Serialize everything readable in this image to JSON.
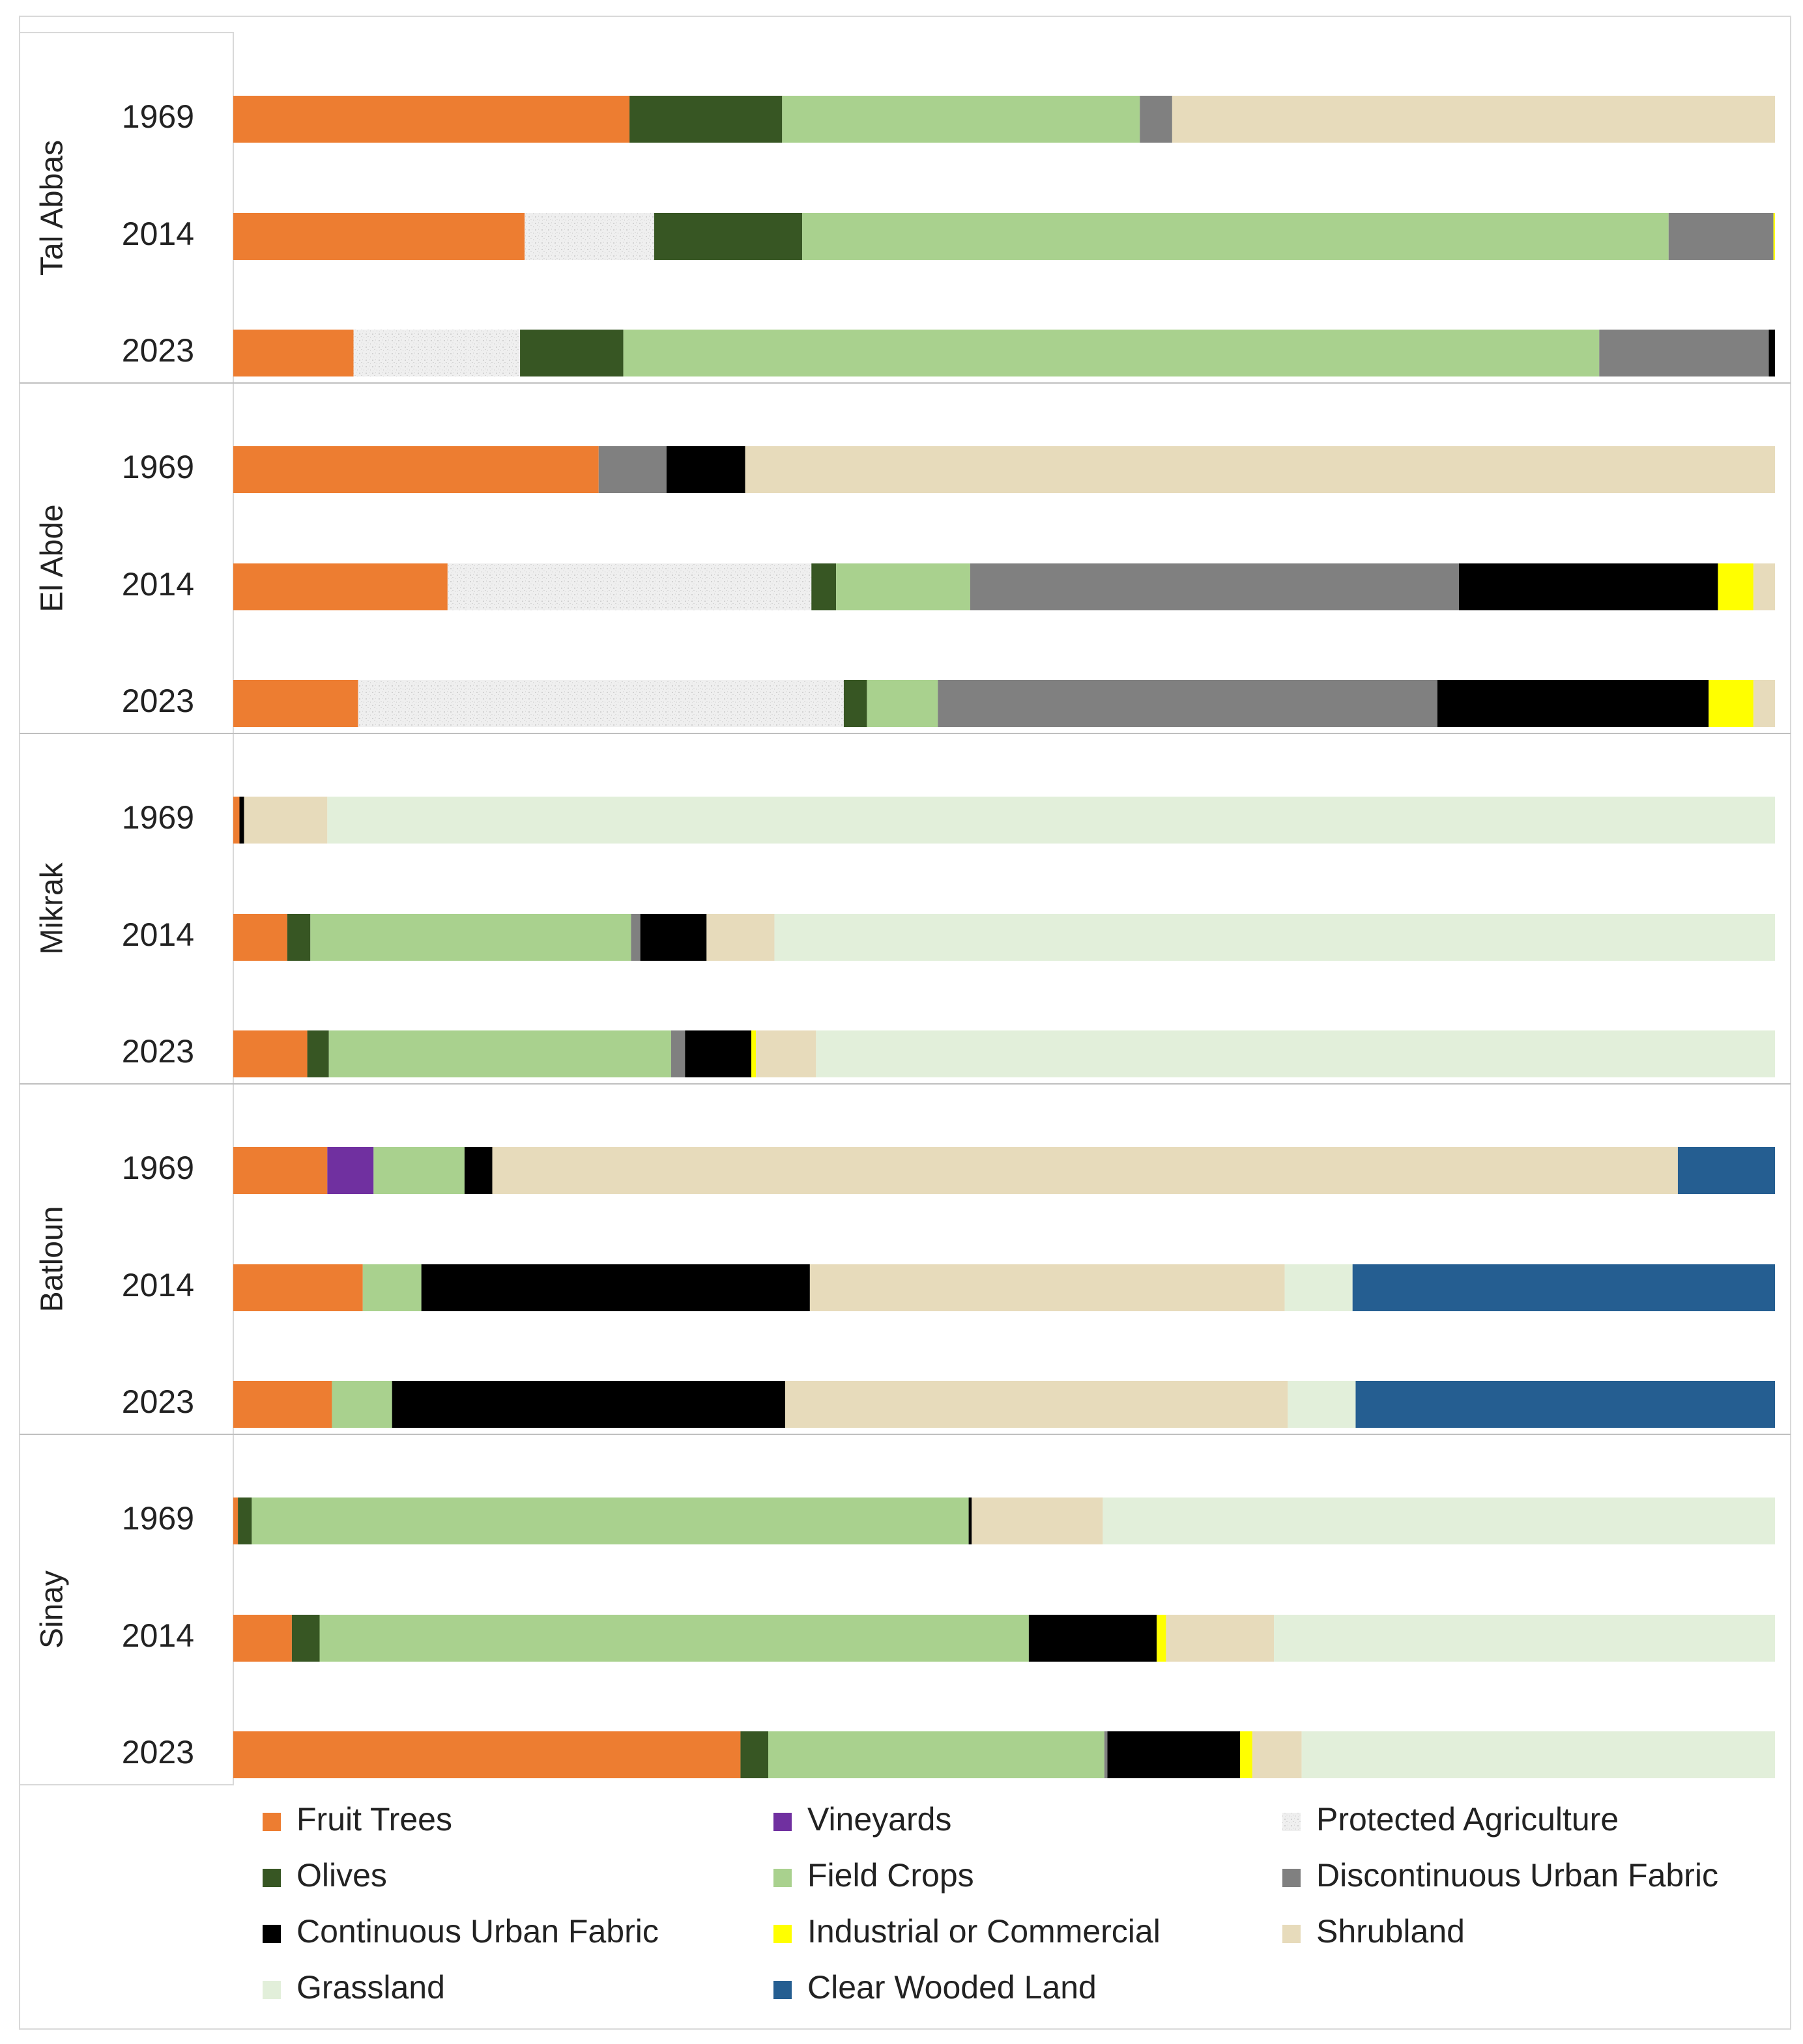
{
  "chart_data": {
    "type": "bar",
    "stacked": true,
    "orientation": "horizontal",
    "normalized": true,
    "xlim": [
      0,
      100
    ],
    "unit": "percent of area (estimated)",
    "legend_position": "bottom",
    "colors": {
      "Fruit Trees": "#ED7D31",
      "Vineyards": "#7030A0",
      "Protected Agriculture": "#EFEFEF",
      "Olives": "#375623",
      "Field Crops": "#A9D18E",
      "Discontinuous Urban Fabric": "#808080",
      "Continuous Urban Fabric": "#000000",
      "Industrial or Commercial": "#FFFF00",
      "Shrubland": "#E7DBBB",
      "Grassland": "#E2EFDA",
      "Clear Wooded Land": "#255E91"
    },
    "legend": [
      "Fruit Trees",
      "Vineyards",
      "Protected Agriculture",
      "Olives",
      "Field Crops",
      "Discontinuous Urban Fabric",
      "Continuous Urban Fabric",
      "Industrial or Commercial",
      "Shrubland",
      "Grassland",
      "Clear Wooded Land"
    ],
    "groups": [
      {
        "name": "Tal Abbas",
        "rows": [
          {
            "year": "1969",
            "segments": [
              {
                "class": "Fruit Trees",
                "value": 25.7
              },
              {
                "class": "Olives",
                "value": 9.9
              },
              {
                "class": "Field Crops",
                "value": 23.2
              },
              {
                "class": "Discontinuous Urban Fabric",
                "value": 2.1
              },
              {
                "class": "Shrubland",
                "value": 39.1
              }
            ]
          },
          {
            "year": "2014",
            "segments": [
              {
                "class": "Fruit Trees",
                "value": 18.9
              },
              {
                "class": "Protected Agriculture",
                "value": 8.4
              },
              {
                "class": "Olives",
                "value": 9.6
              },
              {
                "class": "Field Crops",
                "value": 56.2
              },
              {
                "class": "Discontinuous Urban Fabric",
                "value": 6.8
              },
              {
                "class": "Industrial or Commercial",
                "value": 0.1
              }
            ]
          },
          {
            "year": "2023",
            "segments": [
              {
                "class": "Fruit Trees",
                "value": 7.8
              },
              {
                "class": "Protected Agriculture",
                "value": 10.8
              },
              {
                "class": "Olives",
                "value": 6.7
              },
              {
                "class": "Field Crops",
                "value": 63.3
              },
              {
                "class": "Discontinuous Urban Fabric",
                "value": 11.0
              },
              {
                "class": "Continuous Urban Fabric",
                "value": 0.4
              }
            ]
          }
        ]
      },
      {
        "name": "El Abde",
        "rows": [
          {
            "year": "1969",
            "segments": [
              {
                "class": "Fruit Trees",
                "value": 23.7
              },
              {
                "class": "Discontinuous Urban Fabric",
                "value": 4.4
              },
              {
                "class": "Continuous Urban Fabric",
                "value": 5.1
              },
              {
                "class": "Shrubland",
                "value": 66.8
              }
            ]
          },
          {
            "year": "2014",
            "segments": [
              {
                "class": "Fruit Trees",
                "value": 13.9
              },
              {
                "class": "Protected Agriculture",
                "value": 23.6
              },
              {
                "class": "Olives",
                "value": 1.6
              },
              {
                "class": "Field Crops",
                "value": 8.7
              },
              {
                "class": "Discontinuous Urban Fabric",
                "value": 31.7
              },
              {
                "class": "Continuous Urban Fabric",
                "value": 16.8
              },
              {
                "class": "Industrial or Commercial",
                "value": 2.3
              },
              {
                "class": "Shrubland",
                "value": 1.4
              }
            ]
          },
          {
            "year": "2023",
            "segments": [
              {
                "class": "Fruit Trees",
                "value": 8.1
              },
              {
                "class": "Protected Agriculture",
                "value": 31.5
              },
              {
                "class": "Olives",
                "value": 1.5
              },
              {
                "class": "Field Crops",
                "value": 4.6
              },
              {
                "class": "Discontinuous Urban Fabric",
                "value": 32.4
              },
              {
                "class": "Continuous Urban Fabric",
                "value": 17.6
              },
              {
                "class": "Industrial or Commercial",
                "value": 2.9
              },
              {
                "class": "Shrubland",
                "value": 1.4
              }
            ]
          }
        ]
      },
      {
        "name": "Mikrak",
        "rows": [
          {
            "year": "1969",
            "segments": [
              {
                "class": "Fruit Trees",
                "value": 0.4
              },
              {
                "class": "Continuous Urban Fabric",
                "value": 0.3
              },
              {
                "class": "Shrubland",
                "value": 5.4
              },
              {
                "class": "Grassland",
                "value": 93.9
              }
            ]
          },
          {
            "year": "2014",
            "segments": [
              {
                "class": "Fruit Trees",
                "value": 3.5
              },
              {
                "class": "Olives",
                "value": 1.5
              },
              {
                "class": "Field Crops",
                "value": 20.8
              },
              {
                "class": "Discontinuous Urban Fabric",
                "value": 0.6
              },
              {
                "class": "Continuous Urban Fabric",
                "value": 4.3
              },
              {
                "class": "Shrubland",
                "value": 4.4
              },
              {
                "class": "Grassland",
                "value": 64.9
              }
            ]
          },
          {
            "year": "2023",
            "segments": [
              {
                "class": "Fruit Trees",
                "value": 4.8
              },
              {
                "class": "Olives",
                "value": 1.4
              },
              {
                "class": "Field Crops",
                "value": 22.2
              },
              {
                "class": "Discontinuous Urban Fabric",
                "value": 0.9
              },
              {
                "class": "Continuous Urban Fabric",
                "value": 4.3
              },
              {
                "class": "Industrial or Commercial",
                "value": 0.3
              },
              {
                "class": "Shrubland",
                "value": 3.9
              },
              {
                "class": "Grassland",
                "value": 62.2
              }
            ]
          }
        ]
      },
      {
        "name": "Batloun",
        "rows": [
          {
            "year": "1969",
            "segments": [
              {
                "class": "Fruit Trees",
                "value": 6.1
              },
              {
                "class": "Vineyards",
                "value": 3.0
              },
              {
                "class": "Field Crops",
                "value": 5.9
              },
              {
                "class": "Continuous Urban Fabric",
                "value": 1.8
              },
              {
                "class": "Shrubland",
                "value": 76.9
              },
              {
                "class": "Clear Wooded Land",
                "value": 6.3
              }
            ]
          },
          {
            "year": "2014",
            "segments": [
              {
                "class": "Fruit Trees",
                "value": 8.4
              },
              {
                "class": "Field Crops",
                "value": 3.8
              },
              {
                "class": "Continuous Urban Fabric",
                "value": 25.2
              },
              {
                "class": "Shrubland",
                "value": 30.8
              },
              {
                "class": "Grassland",
                "value": 4.4
              },
              {
                "class": "Clear Wooded Land",
                "value": 27.4
              }
            ]
          },
          {
            "year": "2023",
            "segments": [
              {
                "class": "Fruit Trees",
                "value": 6.4
              },
              {
                "class": "Field Crops",
                "value": 3.9
              },
              {
                "class": "Continuous Urban Fabric",
                "value": 25.5
              },
              {
                "class": "Shrubland",
                "value": 32.6
              },
              {
                "class": "Grassland",
                "value": 4.4
              },
              {
                "class": "Clear Wooded Land",
                "value": 27.2
              }
            ]
          }
        ]
      },
      {
        "name": "Sinay",
        "rows": [
          {
            "year": "1969",
            "segments": [
              {
                "class": "Fruit Trees",
                "value": 0.3
              },
              {
                "class": "Olives",
                "value": 0.9
              },
              {
                "class": "Field Crops",
                "value": 46.5
              },
              {
                "class": "Continuous Urban Fabric",
                "value": 0.2
              },
              {
                "class": "Shrubland",
                "value": 8.5
              },
              {
                "class": "Grassland",
                "value": 43.6
              }
            ]
          },
          {
            "year": "2014",
            "segments": [
              {
                "class": "Fruit Trees",
                "value": 3.8
              },
              {
                "class": "Olives",
                "value": 1.8
              },
              {
                "class": "Field Crops",
                "value": 46.0
              },
              {
                "class": "Continuous Urban Fabric",
                "value": 8.3
              },
              {
                "class": "Industrial or Commercial",
                "value": 0.6
              },
              {
                "class": "Shrubland",
                "value": 7.0
              },
              {
                "class": "Grassland",
                "value": 32.5
              }
            ]
          },
          {
            "year": "2023",
            "segments": [
              {
                "class": "Fruit Trees",
                "value": 32.9
              },
              {
                "class": "Olives",
                "value": 1.8
              },
              {
                "class": "Field Crops",
                "value": 21.8
              },
              {
                "class": "Discontinuous Urban Fabric",
                "value": 0.2
              },
              {
                "class": "Continuous Urban Fabric",
                "value": 8.6
              },
              {
                "class": "Industrial or Commercial",
                "value": 0.8
              },
              {
                "class": "Shrubland",
                "value": 3.2
              },
              {
                "class": "Grassland",
                "value": 30.7
              }
            ]
          }
        ]
      }
    ]
  }
}
